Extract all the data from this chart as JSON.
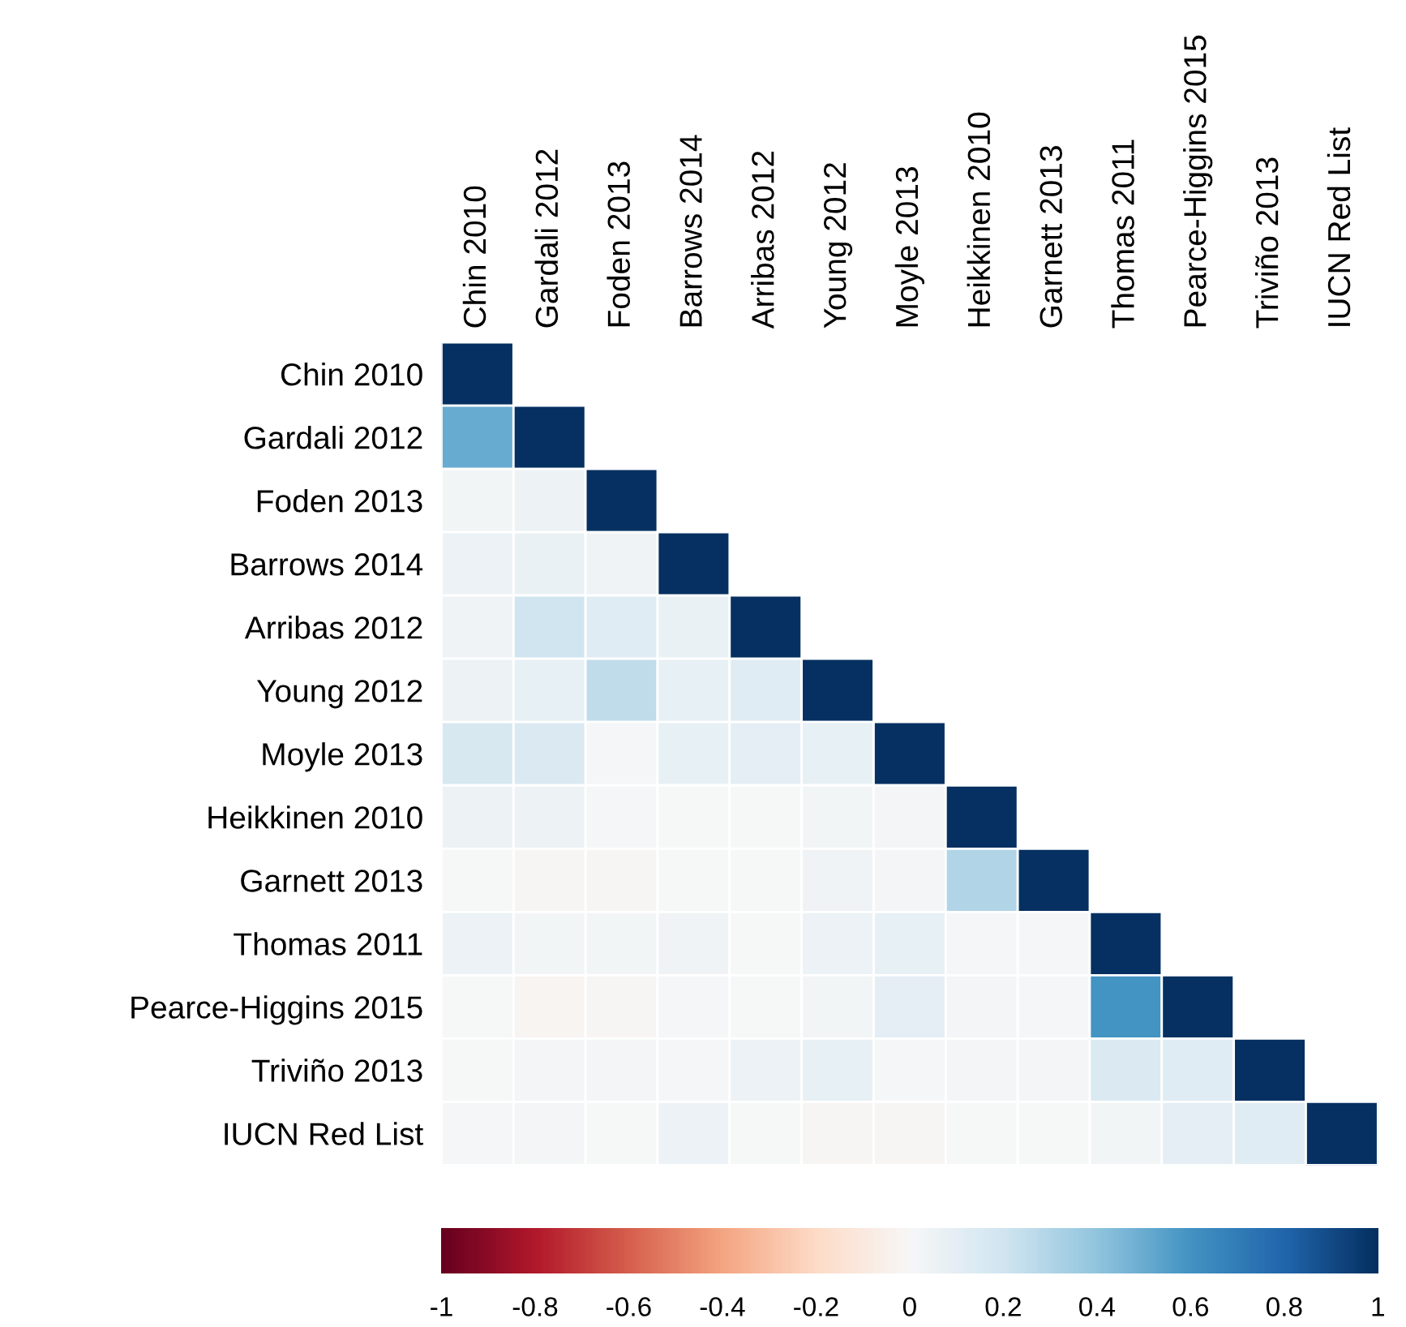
{
  "chart_data": {
    "type": "heatmap",
    "categories": [
      "Chin 2010",
      "Gardali 2012",
      "Foden 2013",
      "Barrows 2014",
      "Arribas 2012",
      "Young 2012",
      "Moyle 2013",
      "Heikkinen 2010",
      "Garnett 2013",
      "Thomas 2011",
      "Pearce-Higgins 2015",
      "Triviño 2013",
      "IUCN Red List"
    ],
    "y_categories": [
      "Chin 2010",
      "Gardali 2012",
      "Foden 2013",
      "Barrows 2014",
      "Arribas 2012",
      "Young 2012",
      "Moyle 2013",
      "Heikkinen 2010",
      "Garnett 2013",
      "Thomas 2011",
      "Pearce-Higgins 2015",
      "Triviño 2013",
      "IUCN Red List"
    ],
    "cells": [
      [
        1,
        null,
        null,
        null,
        null,
        null,
        null,
        null,
        null,
        null,
        null,
        null,
        null
      ],
      [
        0.5,
        1,
        null,
        null,
        null,
        null,
        null,
        null,
        null,
        null,
        null,
        null,
        null
      ],
      [
        0.03,
        0.05,
        1,
        null,
        null,
        null,
        null,
        null,
        null,
        null,
        null,
        null,
        null
      ],
      [
        0.06,
        0.07,
        0.04,
        1,
        null,
        null,
        null,
        null,
        null,
        null,
        null,
        null,
        null
      ],
      [
        0.04,
        0.2,
        0.12,
        0.07,
        1,
        null,
        null,
        null,
        null,
        null,
        null,
        null,
        null
      ],
      [
        0.05,
        0.08,
        0.25,
        0.08,
        0.12,
        1,
        null,
        null,
        null,
        null,
        null,
        null,
        null
      ],
      [
        0.17,
        0.15,
        0.01,
        0.08,
        0.1,
        0.08,
        1,
        null,
        null,
        null,
        null,
        null,
        null
      ],
      [
        0.05,
        0.05,
        0.01,
        0,
        0,
        0.03,
        0.02,
        1,
        null,
        null,
        null,
        null,
        null
      ],
      [
        0,
        -0.01,
        -0.01,
        0,
        0,
        0.04,
        0.02,
        0.3,
        1,
        null,
        null,
        null,
        null
      ],
      [
        0.06,
        0.03,
        0.03,
        0.04,
        0,
        0.06,
        0.08,
        0.01,
        0.01,
        1,
        null,
        null,
        null
      ],
      [
        0,
        -0.02,
        -0.01,
        0.01,
        0,
        0.03,
        0.1,
        0.02,
        0.01,
        0.6,
        1,
        null,
        null
      ],
      [
        0,
        0.02,
        0.02,
        0.01,
        0.06,
        0.08,
        0.01,
        0.02,
        0.02,
        0.15,
        0.12,
        1,
        null
      ],
      [
        0.01,
        0.02,
        0,
        0.06,
        0,
        -0.01,
        -0.01,
        0,
        0,
        0.03,
        0.1,
        0.12,
        1
      ]
    ],
    "clim": [
      -1,
      1
    ],
    "cticks": [
      -1,
      -0.8,
      -0.6,
      -0.4,
      -0.2,
      0,
      0.2,
      0.4,
      0.6,
      0.8,
      1
    ]
  }
}
